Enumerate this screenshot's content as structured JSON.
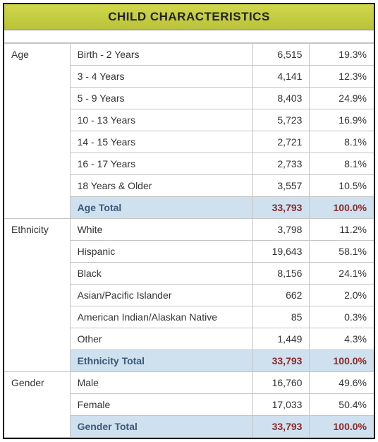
{
  "title": "CHILD CHARACTERISTICS",
  "colors": {
    "header_bg_top": "#d0d84a",
    "header_bg_bottom": "#b9c23a",
    "border_outer": "#000000",
    "border_inner": "#c5c5c5",
    "total_bg": "#cfe0ef",
    "total_label_color": "#3a5a7a",
    "total_value_color": "#8a2a2a",
    "text_color": "#333333",
    "background": "#ffffff"
  },
  "typography": {
    "font_family": "Arial",
    "title_fontsize": 17,
    "body_fontsize": 14
  },
  "columns": {
    "category_width": 92,
    "label_width": 256,
    "count_width": 80,
    "percent_width": 90,
    "count_align": "right",
    "percent_align": "right"
  },
  "sections": [
    {
      "category": "Age",
      "rows": [
        {
          "label": "Birth - 2 Years",
          "count": "6,515",
          "percent": "19.3%"
        },
        {
          "label": "3 - 4 Years",
          "count": "4,141",
          "percent": "12.3%"
        },
        {
          "label": "5 - 9 Years",
          "count": "8,403",
          "percent": "24.9%"
        },
        {
          "label": "10 - 13 Years",
          "count": "5,723",
          "percent": "16.9%"
        },
        {
          "label": "14 - 15 Years",
          "count": "2,721",
          "percent": "8.1%"
        },
        {
          "label": "16 - 17 Years",
          "count": "2,733",
          "percent": "8.1%"
        },
        {
          "label": "18 Years & Older",
          "count": "3,557",
          "percent": "10.5%"
        }
      ],
      "total": {
        "label": "Age Total",
        "count": "33,793",
        "percent": "100.0%"
      }
    },
    {
      "category": "Ethnicity",
      "rows": [
        {
          "label": "White",
          "count": "3,798",
          "percent": "11.2%"
        },
        {
          "label": "Hispanic",
          "count": "19,643",
          "percent": "58.1%"
        },
        {
          "label": "Black",
          "count": "8,156",
          "percent": "24.1%"
        },
        {
          "label": "Asian/Pacific Islander",
          "count": "662",
          "percent": "2.0%"
        },
        {
          "label": "American Indian/Alaskan Native",
          "count": "85",
          "percent": "0.3%"
        },
        {
          "label": "Other",
          "count": "1,449",
          "percent": "4.3%"
        }
      ],
      "total": {
        "label": "Ethnicity Total",
        "count": "33,793",
        "percent": "100.0%"
      }
    },
    {
      "category": "Gender",
      "rows": [
        {
          "label": "Male",
          "count": "16,760",
          "percent": "49.6%"
        },
        {
          "label": "Female",
          "count": "17,033",
          "percent": "50.4%"
        }
      ],
      "total": {
        "label": "Gender Total",
        "count": "33,793",
        "percent": "100.0%"
      }
    }
  ]
}
